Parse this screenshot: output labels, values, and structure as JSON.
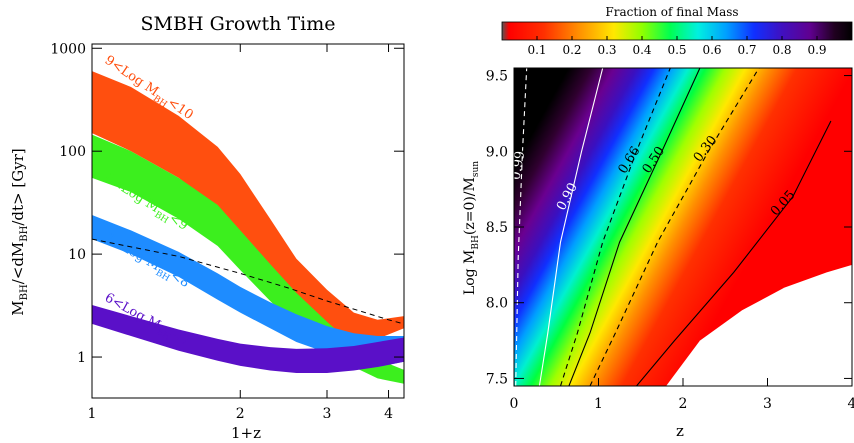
{
  "chart_data": [
    {
      "type": "area",
      "title": "SMBH Growth Time",
      "xlabel": "1+z",
      "ylabel": {
        "main": "M",
        "sub1": "BH",
        "mid": "/<dM",
        "sub2": "BH",
        "end": "/dt> [Gyr]"
      },
      "xscale": "log",
      "yscale": "log",
      "xlim": [
        1,
        4.3
      ],
      "ylim": [
        0.4,
        1100
      ],
      "xticks": [
        1,
        2,
        3,
        4
      ],
      "xtick_labels": [
        "1",
        "2",
        "3",
        "4"
      ],
      "yticks": [
        1,
        10,
        100,
        1000
      ],
      "ytick_labels": [
        "1",
        "10",
        "100",
        "1000"
      ],
      "bands": [
        {
          "label_pre": "9<Log M",
          "label_sub": "BH",
          "label_post": "<10",
          "color": "#ff4f0f",
          "x": [
            1,
            1.2,
            1.5,
            1.8,
            2.0,
            2.3,
            2.6,
            3.0,
            3.4,
            3.8,
            4.3
          ],
          "upper": [
            600,
            420,
            220,
            110,
            60,
            22,
            9,
            4.5,
            2.7,
            2.3,
            2.5
          ],
          "lower": [
            150,
            100,
            55,
            28,
            16,
            7,
            3.4,
            2.0,
            1.5,
            1.5,
            1.9
          ]
        },
        {
          "label_pre": "8<Log M",
          "label_sub": "BH",
          "label_post": "<9",
          "color": "#3cef1e",
          "x": [
            1,
            1.2,
            1.5,
            1.8,
            2.0,
            2.3,
            2.6,
            3.0,
            3.4,
            3.8,
            4.3
          ],
          "upper": [
            145,
            100,
            55,
            30,
            17,
            8,
            4.2,
            2.2,
            1.3,
            0.95,
            0.75
          ],
          "lower": [
            55,
            40,
            22,
            12,
            7,
            3.5,
            2.0,
            1.2,
            0.8,
            0.62,
            0.55
          ]
        },
        {
          "label_pre": "7<Log M",
          "label_sub": "BH",
          "label_post": "<8",
          "color": "#1e8cff",
          "x": [
            1,
            1.2,
            1.5,
            1.8,
            2.0,
            2.3,
            2.6,
            3.0,
            3.4,
            3.8,
            4.3
          ],
          "upper": [
            24,
            17,
            10.5,
            6.5,
            4.8,
            3.4,
            2.6,
            2.0,
            1.7,
            1.6,
            1.6
          ],
          "lower": [
            14,
            10,
            6,
            3.6,
            2.7,
            1.9,
            1.4,
            1.1,
            0.9,
            0.8,
            0.9
          ]
        },
        {
          "label_pre": "6<Log M",
          "label_sub": "BH",
          "label_post": "<7",
          "color": "#5a10c8",
          "x": [
            1,
            1.2,
            1.5,
            1.8,
            2.0,
            2.3,
            2.6,
            3.0,
            3.4,
            3.8,
            4.3
          ],
          "upper": [
            3.2,
            2.5,
            1.85,
            1.5,
            1.35,
            1.25,
            1.2,
            1.22,
            1.28,
            1.4,
            1.55
          ],
          "lower": [
            2.1,
            1.6,
            1.15,
            0.92,
            0.82,
            0.74,
            0.7,
            0.7,
            0.74,
            0.8,
            0.9
          ]
        }
      ],
      "reference_line": {
        "style": "dashed",
        "x": [
          1,
          1.5,
          2,
          2.5,
          3,
          3.5,
          4,
          4.3
        ],
        "y": [
          14,
          9.5,
          6.5,
          4.7,
          3.5,
          2.8,
          2.3,
          2.1
        ]
      }
    },
    {
      "type": "heatmap",
      "colorbar_title": "Fraction of final Mass",
      "colorbar_ticks": [
        0.1,
        0.2,
        0.3,
        0.4,
        0.5,
        0.6,
        0.7,
        0.8,
        0.9
      ],
      "colorbar_tick_labels": [
        "0.1",
        "0.2",
        "0.3",
        "0.4",
        "0.5",
        "0.6",
        "0.7",
        "0.8",
        "0.9"
      ],
      "colormap": [
        "#ffffff",
        "#ff0000",
        "#ff7a00",
        "#ffe600",
        "#7aff00",
        "#00ff80",
        "#00c8ff",
        "#0050ff",
        "#3010c0",
        "#6a0090",
        "#200020",
        "#000000"
      ],
      "xlabel": "z",
      "ylabel": {
        "main": "Log M",
        "sub1": "BH",
        "mid": "(z=0)/M",
        "sub2": "sun"
      },
      "xlim": [
        0,
        4
      ],
      "ylim": [
        7.45,
        9.55
      ],
      "xticks": [
        0,
        1,
        2,
        3,
        4
      ],
      "xtick_labels": [
        "0",
        "1",
        "2",
        "3",
        "4"
      ],
      "yticks": [
        7.5,
        8.0,
        8.5,
        9.0,
        9.5
      ],
      "ytick_labels": [
        "7.5",
        "8.0",
        "8.5",
        "9.0",
        "9.5"
      ],
      "contours": [
        {
          "level": 0.99,
          "label": "0.99",
          "style": "dashed",
          "color": "#ffffff",
          "x": [
            0.02,
            0.05,
            0.1,
            0.15
          ],
          "y": [
            7.45,
            8.3,
            9.0,
            9.55
          ]
        },
        {
          "level": 0.9,
          "label": "0.90",
          "style": "solid",
          "color": "#ffffff",
          "x": [
            0.3,
            0.4,
            0.55,
            0.8,
            1.05
          ],
          "y": [
            7.45,
            7.8,
            8.4,
            9.0,
            9.55
          ]
        },
        {
          "level": 0.66,
          "label": "0.66",
          "style": "dashed",
          "color": "#000000",
          "x": [
            0.55,
            0.75,
            1.05,
            1.45,
            1.85
          ],
          "y": [
            7.45,
            7.8,
            8.4,
            9.0,
            9.55
          ]
        },
        {
          "level": 0.5,
          "label": "0.50",
          "style": "solid",
          "color": "#000000",
          "x": [
            0.65,
            0.9,
            1.25,
            1.75,
            2.2
          ],
          "y": [
            7.45,
            7.8,
            8.4,
            9.0,
            9.55
          ]
        },
        {
          "level": 0.3,
          "label": "0.30",
          "style": "dashed",
          "color": "#000000",
          "x": [
            0.9,
            1.2,
            1.7,
            2.3,
            2.9
          ],
          "y": [
            7.45,
            7.8,
            8.4,
            9.0,
            9.55
          ]
        },
        {
          "level": 0.05,
          "label": "0.05",
          "style": "solid",
          "color": "#000000",
          "x": [
            1.45,
            1.9,
            2.6,
            3.3,
            3.75
          ],
          "y": [
            7.45,
            7.75,
            8.2,
            8.7,
            9.2
          ]
        }
      ],
      "empty_region_x": [
        1.8,
        2.2,
        2.7,
        3.2,
        3.7,
        4.0
      ],
      "empty_region_ymax": [
        7.45,
        7.75,
        7.95,
        8.1,
        8.2,
        8.25
      ]
    }
  ]
}
